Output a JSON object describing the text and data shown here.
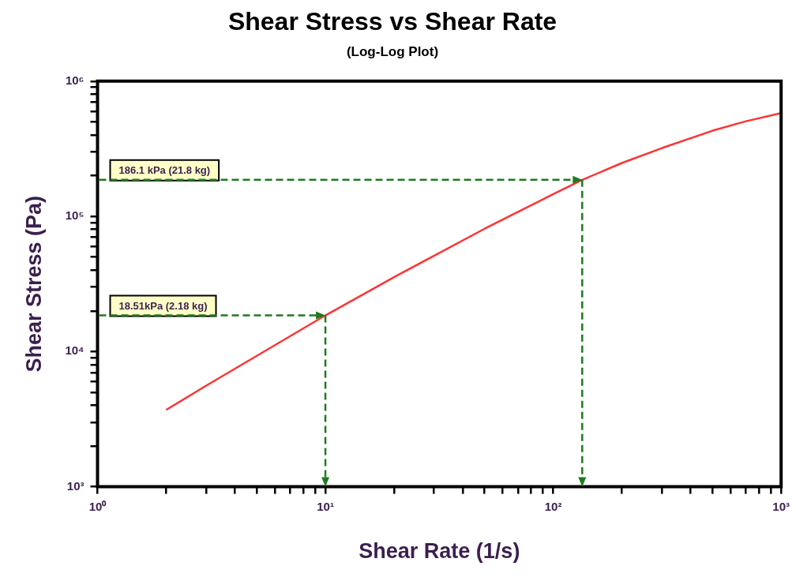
{
  "chart_data": {
    "type": "line",
    "title": "Shear Stress vs Shear Rate",
    "subtitle": "(Log-Log Plot)",
    "xlabel": "Shear Rate (1/s)",
    "ylabel": "Shear Stress (Pa)",
    "x": [
      2,
      3,
      5,
      10,
      20,
      50,
      100,
      134,
      200,
      300,
      500,
      700,
      1000
    ],
    "series": [
      {
        "color": "#ff3333",
        "values": [
          3700,
          5600,
          9300,
          18510,
          35500,
          81000,
          146000,
          186100,
          248000,
          320000,
          430000,
          505000,
          581000
        ]
      }
    ],
    "log": "xy",
    "xlim": [
      1,
      1000
    ],
    "ylim": [
      1000,
      1000000
    ],
    "xticks": [
      {
        "value": 1,
        "label": "10⁰"
      },
      {
        "value": 2,
        "label": null
      },
      {
        "value": 3,
        "label": null
      },
      {
        "value": 4,
        "label": null
      },
      {
        "value": 5,
        "label": null
      },
      {
        "value": 6,
        "label": null
      },
      {
        "value": 7,
        "label": null
      },
      {
        "value": 8,
        "label": null
      },
      {
        "value": 9,
        "label": null
      },
      {
        "value": 10,
        "label": "10¹"
      },
      {
        "value": 20,
        "label": null
      },
      {
        "value": 30,
        "label": null
      },
      {
        "value": 40,
        "label": null
      },
      {
        "value": 50,
        "label": null
      },
      {
        "value": 60,
        "label": null
      },
      {
        "value": 70,
        "label": null
      },
      {
        "value": 80,
        "label": null
      },
      {
        "value": 90,
        "label": null
      },
      {
        "value": 100,
        "label": "10²"
      },
      {
        "value": 200,
        "label": null
      },
      {
        "value": 300,
        "label": null
      },
      {
        "value": 400,
        "label": null
      },
      {
        "value": 500,
        "label": null
      },
      {
        "value": 600,
        "label": null
      },
      {
        "value": 700,
        "label": null
      },
      {
        "value": 800,
        "label": null
      },
      {
        "value": 900,
        "label": null
      },
      {
        "value": 1000,
        "label": "10³"
      }
    ],
    "yticks": [
      {
        "value": 1000,
        "label": "10³"
      },
      {
        "value": 2000,
        "label": null
      },
      {
        "value": 3000,
        "label": null
      },
      {
        "value": 4000,
        "label": null
      },
      {
        "value": 5000,
        "label": null
      },
      {
        "value": 6000,
        "label": null
      },
      {
        "value": 7000,
        "label": null
      },
      {
        "value": 8000,
        "label": null
      },
      {
        "value": 9000,
        "label": null
      },
      {
        "value": 10000,
        "label": "10⁴"
      },
      {
        "value": 20000,
        "label": null
      },
      {
        "value": 30000,
        "label": null
      },
      {
        "value": 40000,
        "label": null
      },
      {
        "value": 50000,
        "label": null
      },
      {
        "value": 60000,
        "label": null
      },
      {
        "value": 70000,
        "label": null
      },
      {
        "value": 80000,
        "label": null
      },
      {
        "value": 90000,
        "label": null
      },
      {
        "value": 100000,
        "label": "10⁵"
      },
      {
        "value": 200000,
        "label": null
      },
      {
        "value": 300000,
        "label": null
      },
      {
        "value": 400000,
        "label": null
      },
      {
        "value": 500000,
        "label": null
      },
      {
        "value": 600000,
        "label": null
      },
      {
        "value": 700000,
        "label": null
      },
      {
        "value": 800000,
        "label": null
      },
      {
        "value": 900000,
        "label": null
      },
      {
        "value": 1000000,
        "label": "10⁶"
      }
    ],
    "ref_lines": [
      {
        "axis": "y",
        "value": 18510,
        "label": "18.51kPa (2.18 kg)",
        "color": "#1e7a1e",
        "line_style": "dashed"
      },
      {
        "axis": "y",
        "value": 186100,
        "label": "186.1 kPa (21.8 kg)",
        "color": "#1e7a1e",
        "line_style": "dashed"
      },
      {
        "axis": "x",
        "value": 10,
        "color": "#1e7a1e",
        "line_style": "dashed"
      },
      {
        "axis": "x",
        "value": 134,
        "color": "#1e7a1e",
        "line_style": "dashed"
      }
    ],
    "grid": false,
    "legend": false,
    "marker": "none",
    "line_style": "solid"
  }
}
